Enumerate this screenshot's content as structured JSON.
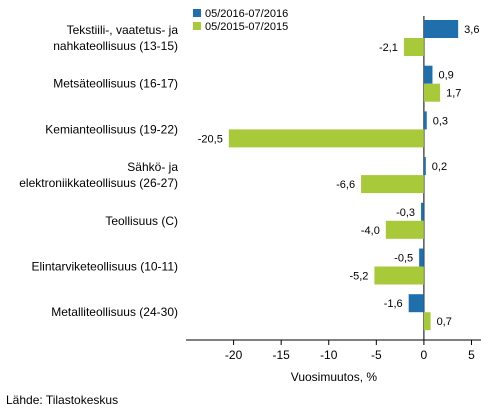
{
  "chart_data": {
    "type": "bar",
    "orientation": "horizontal",
    "categories": [
      [
        "Tekstiili-, vaatetus- ja",
        "nahkateollisuus (13-15)"
      ],
      [
        "Metsäteollisuus (16-17)"
      ],
      [
        "Kemianteollisuus (19-22)"
      ],
      [
        "Sähkö- ja",
        "elektroniikkateollisuus (26-27)"
      ],
      [
        "Teollisuus (C)"
      ],
      [
        "Elintarviketeollisuus (10-11)"
      ],
      [
        "Metalliteollisuus (24-30)"
      ]
    ],
    "series": [
      {
        "name": "05/2016-07/2016",
        "color": "#1f6fad",
        "values": [
          3.6,
          0.9,
          0.3,
          0.2,
          -0.3,
          -0.5,
          -1.6
        ],
        "labels": [
          "3,6",
          "0,9",
          "0,3",
          "0,2",
          "-0,3",
          "-0,5",
          "-1,6"
        ]
      },
      {
        "name": "05/2015-07/2015",
        "color": "#a8c93a",
        "values": [
          -2.1,
          1.7,
          -20.5,
          -6.6,
          -4.0,
          -5.2,
          0.7
        ],
        "labels": [
          "-2,1",
          "1,7",
          "-20,5",
          "-6,6",
          "-4,0",
          "-5,2",
          "0,7"
        ]
      }
    ],
    "xlim": [
      -25,
      6
    ],
    "xticks": [
      -20,
      -15,
      -10,
      -5,
      0,
      5
    ],
    "xtick_labels": [
      "-20",
      "-15",
      "-10",
      "-5",
      "0",
      "5"
    ],
    "xlabel": "Vuosimuutos, %",
    "legend_position": "top-left",
    "grid": false
  },
  "source": "Lähde: Tilastokeskus"
}
